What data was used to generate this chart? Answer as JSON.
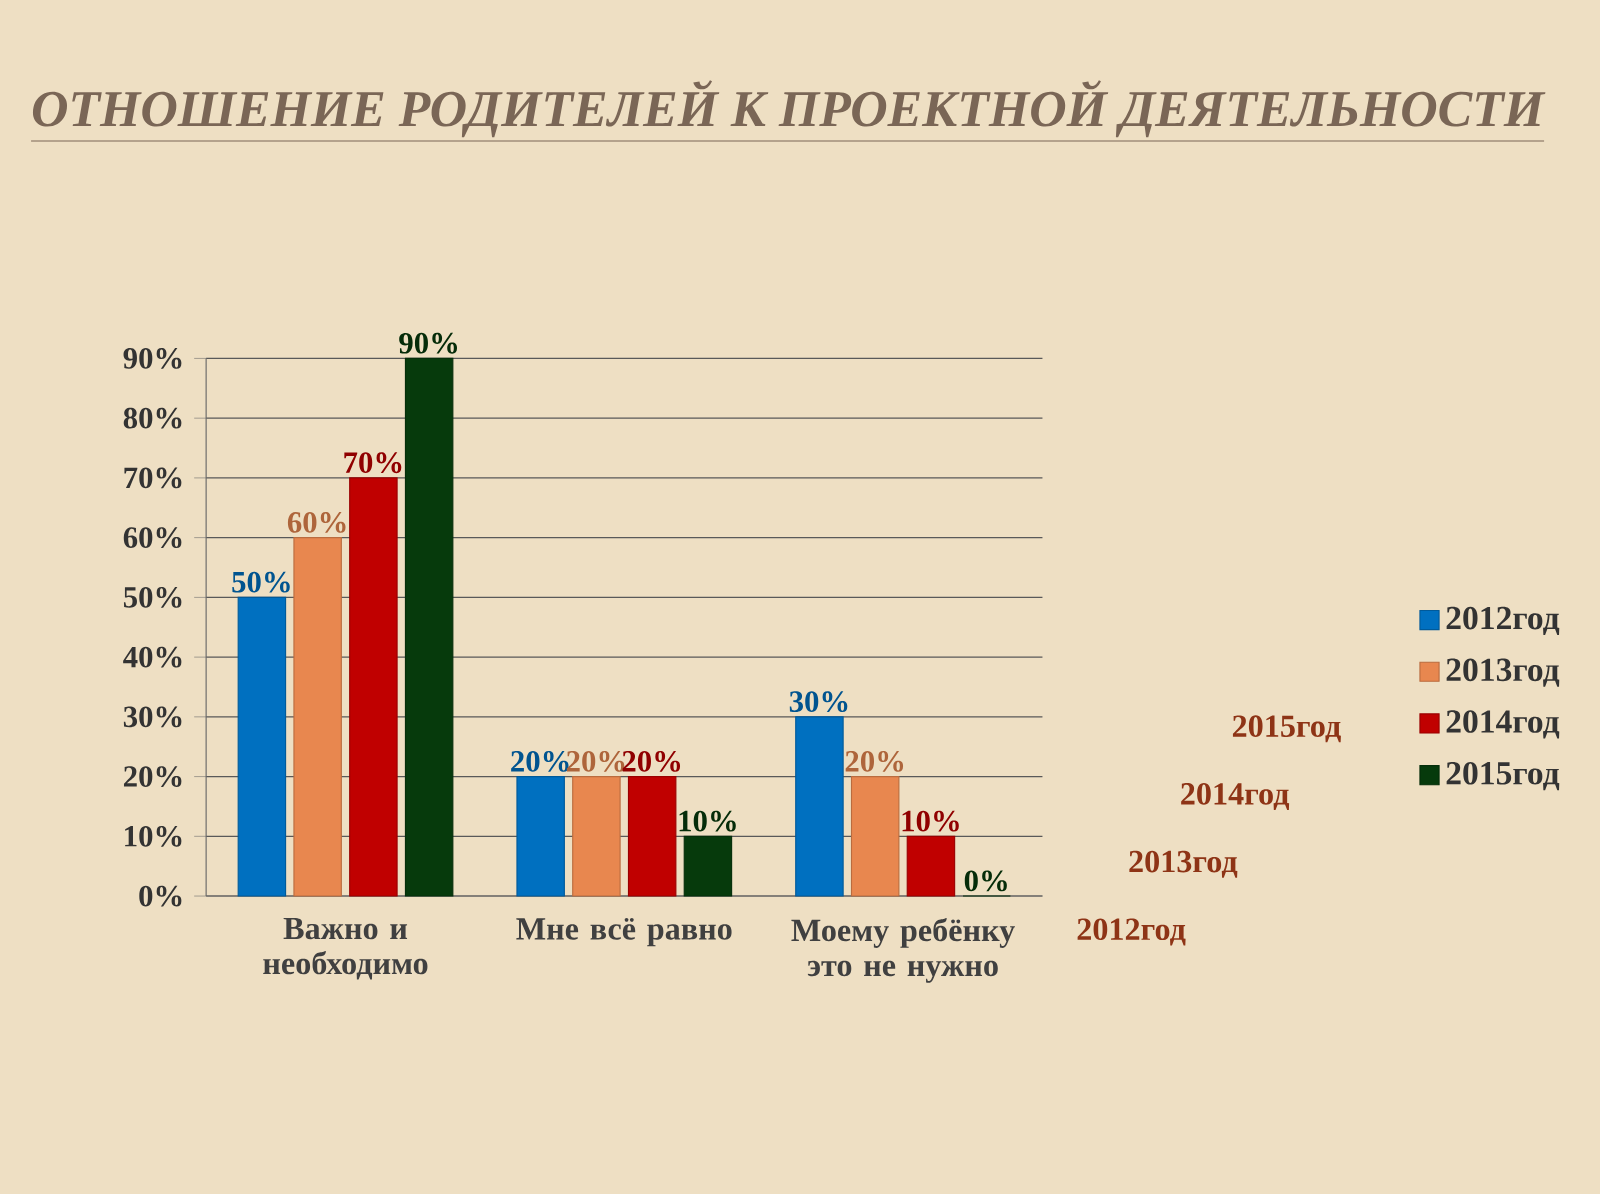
{
  "chart_data": {
    "type": "bar",
    "title": "ОТНОШЕНИЕ РОДИТЕЛЕЙ К ПРОЕКТНОЙ ДЕЯТЕЛЬНОСТИ",
    "categories": [
      "Важно и необходимо",
      "Мне всё равно",
      "Моему ребёнку это не нужно"
    ],
    "series": [
      {
        "name": "2012год",
        "color": "#0070c0",
        "values": [
          50,
          20,
          30
        ],
        "value_labels": [
          "50%",
          "20%",
          "30%"
        ]
      },
      {
        "name": "2013год",
        "color": "#e8874f",
        "values": [
          60,
          20,
          20
        ],
        "value_labels": [
          "60%",
          "20%",
          "20%"
        ]
      },
      {
        "name": "2014год",
        "color": "#c00000",
        "values": [
          70,
          20,
          10
        ],
        "value_labels": [
          "70%",
          "20%",
          "10%"
        ]
      },
      {
        "name": "2015год",
        "color": "#063a0c",
        "values": [
          90,
          10,
          0
        ],
        "value_labels": [
          "90%",
          "10%",
          "0%"
        ]
      }
    ],
    "ylim": [
      0,
      90
    ],
    "yticks": [
      {
        "value": 0,
        "label": "0%"
      },
      {
        "value": 10,
        "label": "10%"
      },
      {
        "value": 20,
        "label": "20%"
      },
      {
        "value": 30,
        "label": "30%"
      },
      {
        "value": 40,
        "label": "40%"
      },
      {
        "value": 50,
        "label": "50%"
      },
      {
        "value": 60,
        "label": "60%"
      },
      {
        "value": 70,
        "label": "70%"
      },
      {
        "value": 80,
        "label": "80%"
      },
      {
        "value": 90,
        "label": "90%"
      }
    ],
    "grid": "y",
    "legend": "right"
  }
}
